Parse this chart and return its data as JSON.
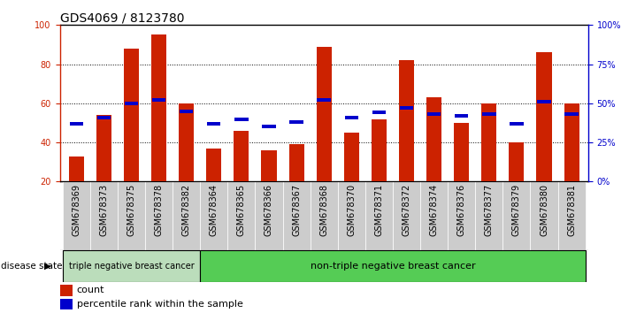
{
  "title": "GDS4069 / 8123780",
  "samples": [
    "GSM678369",
    "GSM678373",
    "GSM678375",
    "GSM678378",
    "GSM678382",
    "GSM678364",
    "GSM678365",
    "GSM678366",
    "GSM678367",
    "GSM678368",
    "GSM678370",
    "GSM678371",
    "GSM678372",
    "GSM678374",
    "GSM678376",
    "GSM678377",
    "GSM678379",
    "GSM678380",
    "GSM678381"
  ],
  "counts": [
    33,
    54,
    88,
    95,
    60,
    37,
    46,
    36,
    39,
    89,
    45,
    52,
    82,
    63,
    50,
    60,
    40,
    86,
    60
  ],
  "percentiles": [
    37,
    41,
    50,
    52,
    45,
    37,
    40,
    35,
    38,
    52,
    41,
    44,
    47,
    43,
    42,
    43,
    37,
    51,
    43
  ],
  "left_ylim": [
    20,
    100
  ],
  "left_yticks": [
    20,
    40,
    60,
    80,
    100
  ],
  "right_ylim": [
    0,
    100
  ],
  "right_yticks": [
    0,
    25,
    50,
    75,
    100
  ],
  "right_yticklabels": [
    "0%",
    "25%",
    "50%",
    "75%",
    "100%"
  ],
  "bar_color": "#cc2200",
  "marker_color": "#0000cc",
  "group1_count": 5,
  "group1_label": "triple negative breast cancer",
  "group2_label": "non-triple negative breast cancer",
  "group1_bg": "#bbddbb",
  "group2_bg": "#55cc55",
  "disease_state_label": "disease state",
  "legend_count_label": "count",
  "legend_pct_label": "percentile rank within the sample",
  "bar_width": 0.55,
  "tick_bg": "#cccccc",
  "title_fontsize": 10,
  "tick_fontsize": 7,
  "legend_fontsize": 8
}
